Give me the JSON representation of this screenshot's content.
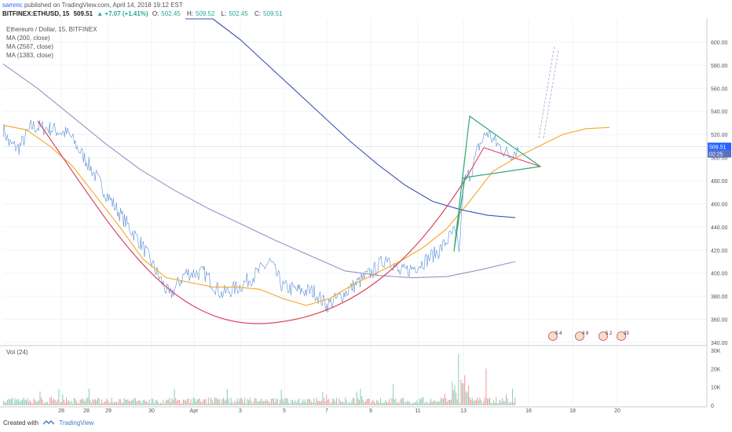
{
  "header": {
    "user": "sammc",
    "published": " published on TradingView.com, April 14, 2018 19:12 EST",
    "symbol": "BITFINEX:ETHUSD, 15",
    "last": "509.51",
    "change": "▲ +7.07 (+1.41%)",
    "o_label": "O:",
    "o": "502.45",
    "h_label": "H:",
    "h": "509.52",
    "l_label": "L:",
    "l": "502.45",
    "c_label": "C:",
    "c": "509.51"
  },
  "legend": {
    "title": "Ethereum / Dollar, 15, BITFINEX",
    "ma1": "MA (200, close)",
    "ma2": "MA (2567, close)",
    "ma3": "MA (1383, close)"
  },
  "volume_label": "Vol (24)",
  "footer": {
    "created_with": "Created with",
    "brand": "TradingView"
  },
  "colors": {
    "price": "#5b8fd6",
    "ma200": "#f5a623",
    "ma2567": "#3f51b5",
    "ma1383": "#9c8fc4",
    "cup": "#d9455f",
    "wedge": "#2eaa78",
    "triangle": "#d9455f",
    "projection": "#9aa8d8",
    "last_badge": "#2962ff",
    "countdown_badge": "#5b6fbf"
  },
  "badges": [
    "5 4",
    "4 8",
    "5 2",
    "33"
  ],
  "chart_data": {
    "type": "line",
    "title": "Ethereum / Dollar, 15, BITFINEX",
    "x_ticks": [
      "28",
      "28",
      "29",
      "30",
      "Apr",
      "3",
      "5",
      "7",
      "9",
      "11",
      "13",
      "16",
      "18",
      "20"
    ],
    "ylim": [
      340,
      620
    ],
    "y_ticks": [
      "340.00",
      "360.00",
      "380.00",
      "400.00",
      "420.00",
      "440.00",
      "460.00",
      "480.00",
      "500.00",
      "520.00",
      "540.00",
      "560.00",
      "580.00",
      "600.00"
    ],
    "last_price": "509.51",
    "countdown": "02:25",
    "series": [
      {
        "name": "MA (200, close)",
        "values": [
          528,
          524,
          510,
          492,
          466,
          440,
          412,
          396,
          392,
          388,
          388,
          386,
          378,
          372,
          378,
          390,
          400,
          410,
          422,
          438,
          462,
          488,
          500,
          510,
          520,
          525,
          526
        ]
      },
      {
        "name": "MA (2567, close)",
        "values": [
          640,
          622,
          602,
          580,
          558,
          536,
          514,
          494,
          476,
          462,
          455,
          450,
          448
        ]
      },
      {
        "name": "MA (1383, close)",
        "values": [
          581,
          560,
          536,
          512,
          490,
          472,
          456,
          442,
          428,
          415,
          402,
          398,
          396,
          397,
          403,
          410
        ]
      }
    ],
    "volume": {
      "ylim": [
        0,
        30000
      ],
      "y_ticks": [
        "0",
        "10K",
        "20K",
        "30K"
      ]
    }
  }
}
